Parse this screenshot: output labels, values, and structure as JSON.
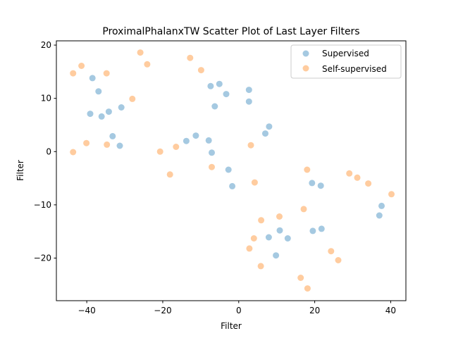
{
  "chart_data": {
    "type": "scatter",
    "title": "ProximalPhalanxTW Scatter Plot of Last Layer Filters",
    "xlabel": "Filter",
    "ylabel": "Filter",
    "xlim": [
      -48,
      44
    ],
    "ylim": [
      -28,
      20.8
    ],
    "xticks": [
      -40,
      -20,
      0,
      20,
      40
    ],
    "yticks": [
      -20,
      -10,
      0,
      10,
      20
    ],
    "grid": false,
    "legend_position": "top-right",
    "series": [
      {
        "name": "Supervised",
        "color": "#1f77b4",
        "points": [
          [
            -38.5,
            13.8
          ],
          [
            -36.9,
            11.3
          ],
          [
            -39.1,
            7.1
          ],
          [
            -36.1,
            6.6
          ],
          [
            -34.2,
            7.5
          ],
          [
            -30.9,
            8.3
          ],
          [
            -33.2,
            2.9
          ],
          [
            -31.3,
            1.1
          ],
          [
            -13.8,
            2.0
          ],
          [
            -11.3,
            3.0
          ],
          [
            -7.9,
            2.1
          ],
          [
            -7.1,
            -0.2
          ],
          [
            -2.7,
            -3.4
          ],
          [
            -1.7,
            -6.5
          ],
          [
            -7.4,
            12.3
          ],
          [
            -5.1,
            12.7
          ],
          [
            -3.3,
            10.8
          ],
          [
            -6.3,
            8.5
          ],
          [
            2.7,
            11.6
          ],
          [
            2.7,
            9.4
          ],
          [
            7.0,
            3.4
          ],
          [
            8.0,
            4.7
          ],
          [
            19.3,
            -5.9
          ],
          [
            21.6,
            -6.4
          ],
          [
            10.8,
            -14.8
          ],
          [
            7.9,
            -16.1
          ],
          [
            12.9,
            -16.3
          ],
          [
            9.8,
            -19.5
          ],
          [
            19.5,
            -14.9
          ],
          [
            21.8,
            -14.5
          ],
          [
            37.6,
            -10.2
          ],
          [
            37.0,
            -12.0
          ]
        ]
      },
      {
        "name": "Self-supervised",
        "color": "#ff7f0e",
        "points": [
          [
            -43.6,
            14.7
          ],
          [
            -41.4,
            16.1
          ],
          [
            -34.8,
            14.7
          ],
          [
            -25.9,
            18.6
          ],
          [
            -24.1,
            16.4
          ],
          [
            -28.0,
            9.9
          ],
          [
            -12.8,
            17.6
          ],
          [
            -9.9,
            15.3
          ],
          [
            -43.6,
            -0.1
          ],
          [
            -40.1,
            1.6
          ],
          [
            -34.7,
            1.3
          ],
          [
            -20.7,
            0.0
          ],
          [
            -16.5,
            0.9
          ],
          [
            -18.1,
            -4.3
          ],
          [
            -7.1,
            -2.9
          ],
          [
            3.2,
            1.2
          ],
          [
            4.2,
            -5.8
          ],
          [
            18.0,
            -3.4
          ],
          [
            29.1,
            -4.1
          ],
          [
            31.2,
            -4.9
          ],
          [
            34.1,
            -6.0
          ],
          [
            40.2,
            -8.0
          ],
          [
            17.1,
            -10.8
          ],
          [
            10.7,
            -12.2
          ],
          [
            5.9,
            -12.9
          ],
          [
            4.0,
            -16.3
          ],
          [
            2.8,
            -18.2
          ],
          [
            5.8,
            -21.5
          ],
          [
            24.3,
            -18.7
          ],
          [
            26.2,
            -20.4
          ],
          [
            16.3,
            -23.7
          ],
          [
            18.1,
            -25.7
          ]
        ]
      }
    ]
  }
}
